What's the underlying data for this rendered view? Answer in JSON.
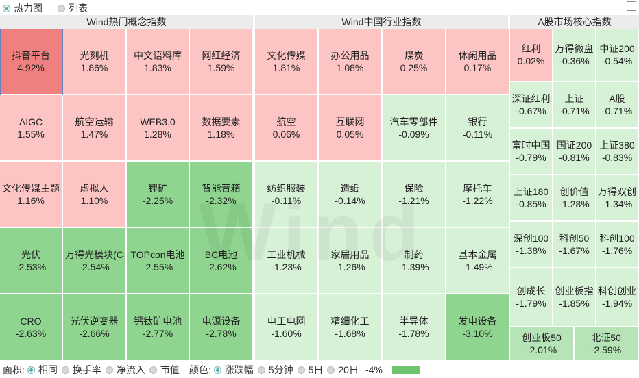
{
  "top_tabs": [
    {
      "label": "热力图",
      "selected": true
    },
    {
      "label": "列表",
      "selected": false
    }
  ],
  "headers": [
    "Wind热门概念指数",
    "Wind中国行业指数",
    "A股市场核心指数"
  ],
  "watermark": "Wind",
  "colors": {
    "up_strong": "#f08080",
    "up": "#fdc4c4",
    "down_light": "#cdeecd",
    "down": "#a3dba3",
    "down_strong": "#6cc36c"
  },
  "tiles": [
    {
      "name": "抖音平台",
      "pct": "4.92%",
      "color": "#f08080"
    },
    {
      "name": "光刻机",
      "pct": "1.86%",
      "color": "#fdc4c4"
    },
    {
      "name": "中文语料库",
      "pct": "1.83%",
      "color": "#fdc4c4"
    },
    {
      "name": "网红经济",
      "pct": "1.59%",
      "color": "#fdc4c4"
    },
    {
      "name": "AIGC",
      "pct": "1.55%",
      "color": "#fdc4c4"
    },
    {
      "name": "航空运输",
      "pct": "1.47%",
      "color": "#fdc4c4"
    },
    {
      "name": "WEB3.0",
      "pct": "1.28%",
      "color": "#fdc4c4"
    },
    {
      "name": "数据要素",
      "pct": "1.18%",
      "color": "#fdc4c4"
    },
    {
      "name": "文化传媒主题",
      "pct": "1.16%",
      "color": "#fdc4c4"
    },
    {
      "name": "虚拟人",
      "pct": "1.10%",
      "color": "#fdc4c4"
    },
    {
      "name": "锂矿",
      "pct": "-2.25%",
      "color": "#8fd48f"
    },
    {
      "name": "智能音箱",
      "pct": "-2.32%",
      "color": "#8fd48f"
    },
    {
      "name": "光伏",
      "pct": "-2.53%",
      "color": "#8fd48f"
    },
    {
      "name": "万得光模块(C",
      "pct": "-2.54%",
      "color": "#8fd48f"
    },
    {
      "name": "TOPcon电池",
      "pct": "-2.55%",
      "color": "#8fd48f"
    },
    {
      "name": "BC电池",
      "pct": "-2.62%",
      "color": "#8fd48f"
    },
    {
      "name": "CRO",
      "pct": "-2.63%",
      "color": "#8fd48f"
    },
    {
      "name": "光伏逆变器",
      "pct": "-2.66%",
      "color": "#8fd48f"
    },
    {
      "name": "钙钛矿电池",
      "pct": "-2.77%",
      "color": "#8fd48f"
    },
    {
      "name": "电源设备",
      "pct": "-2.78%",
      "color": "#8fd48f"
    },
    {
      "name": "文化传媒",
      "pct": "1.81%",
      "color": "#fdc4c4"
    },
    {
      "name": "办公用品",
      "pct": "1.08%",
      "color": "#fdc4c4"
    },
    {
      "name": "煤炭",
      "pct": "0.25%",
      "color": "#fdc4c4"
    },
    {
      "name": "休闲用品",
      "pct": "0.17%",
      "color": "#fdc4c4"
    },
    {
      "name": "航空",
      "pct": "0.06%",
      "color": "#fdc4c4"
    },
    {
      "name": "互联网",
      "pct": "0.05%",
      "color": "#fdc4c4"
    },
    {
      "name": "汽车零部件",
      "pct": "-0.09%",
      "color": "#d6f1d6"
    },
    {
      "name": "银行",
      "pct": "-0.11%",
      "color": "#d6f1d6"
    },
    {
      "name": "纺织服装",
      "pct": "-0.11%",
      "color": "#d6f1d6"
    },
    {
      "name": "造纸",
      "pct": "-0.14%",
      "color": "#d6f1d6"
    },
    {
      "name": "保险",
      "pct": "-1.21%",
      "color": "#d6f1d6"
    },
    {
      "name": "摩托车",
      "pct": "-1.22%",
      "color": "#d6f1d6"
    },
    {
      "name": "工业机械",
      "pct": "-1.23%",
      "color": "#d6f1d6"
    },
    {
      "name": "家居用品",
      "pct": "-1.26%",
      "color": "#d6f1d6"
    },
    {
      "name": "制药",
      "pct": "-1.39%",
      "color": "#d6f1d6"
    },
    {
      "name": "基本金属",
      "pct": "-1.49%",
      "color": "#d6f1d6"
    },
    {
      "name": "电工电网",
      "pct": "-1.60%",
      "color": "#d6f1d6"
    },
    {
      "name": "精细化工",
      "pct": "-1.68%",
      "color": "#d6f1d6"
    },
    {
      "name": "半导体",
      "pct": "-1.78%",
      "color": "#d6f1d6"
    },
    {
      "name": "发电设备",
      "pct": "-3.10%",
      "color": "#8fd48f"
    },
    {
      "name": "红利",
      "pct": "0.02%",
      "color": "#fdc4c4"
    },
    {
      "name": "万得微盘",
      "pct": "-0.36%",
      "color": "#d6f1d6"
    },
    {
      "name": "中证200",
      "pct": "-0.54%",
      "color": "#d6f1d6"
    },
    {
      "name": "深证红利",
      "pct": "-0.67%",
      "color": "#d6f1d6"
    },
    {
      "name": "上证",
      "pct": "-0.71%",
      "color": "#d6f1d6"
    },
    {
      "name": "A股",
      "pct": "-0.71%",
      "color": "#d6f1d6"
    },
    {
      "name": "富时中国",
      "pct": "-0.79%",
      "color": "#d6f1d6"
    },
    {
      "name": "国证200",
      "pct": "-0.81%",
      "color": "#d6f1d6"
    },
    {
      "name": "上证380",
      "pct": "-0.83%",
      "color": "#d6f1d6"
    },
    {
      "name": "上证180",
      "pct": "-0.85%",
      "color": "#d6f1d6"
    },
    {
      "name": "创价值",
      "pct": "-1.28%",
      "color": "#d6f1d6"
    },
    {
      "name": "万得双创",
      "pct": "-1.34%",
      "color": "#d6f1d6"
    },
    {
      "name": "深创100",
      "pct": "-1.38%",
      "color": "#d6f1d6"
    },
    {
      "name": "科创50",
      "pct": "-1.67%",
      "color": "#d6f1d6"
    },
    {
      "name": "科创100",
      "pct": "-1.76%",
      "color": "#d6f1d6"
    },
    {
      "name": "创成长",
      "pct": "-1.79%",
      "color": "#d6f1d6"
    },
    {
      "name": "创业板指",
      "pct": "-1.85%",
      "color": "#d6f1d6"
    },
    {
      "name": "科创创业",
      "pct": "-1.94%",
      "color": "#d6f1d6"
    },
    {
      "name": "创业板50",
      "pct": "-2.01%",
      "color": "#b6e4b6"
    },
    {
      "name": "北证50",
      "pct": "-2.59%",
      "color": "#b6e4b6"
    }
  ],
  "bottom": {
    "area_label": "面积:",
    "area_options": [
      {
        "label": "相同",
        "selected": true
      },
      {
        "label": "换手率",
        "selected": false
      },
      {
        "label": "净流入",
        "selected": false
      },
      {
        "label": "市值",
        "selected": false
      }
    ],
    "color_label": "颜色:",
    "color_options": [
      {
        "label": "涨跌幅",
        "selected": true
      },
      {
        "label": "5分钟",
        "selected": false
      },
      {
        "label": "5日",
        "selected": false
      },
      {
        "label": "20日",
        "selected": false
      }
    ],
    "scale_min": "-4%"
  }
}
